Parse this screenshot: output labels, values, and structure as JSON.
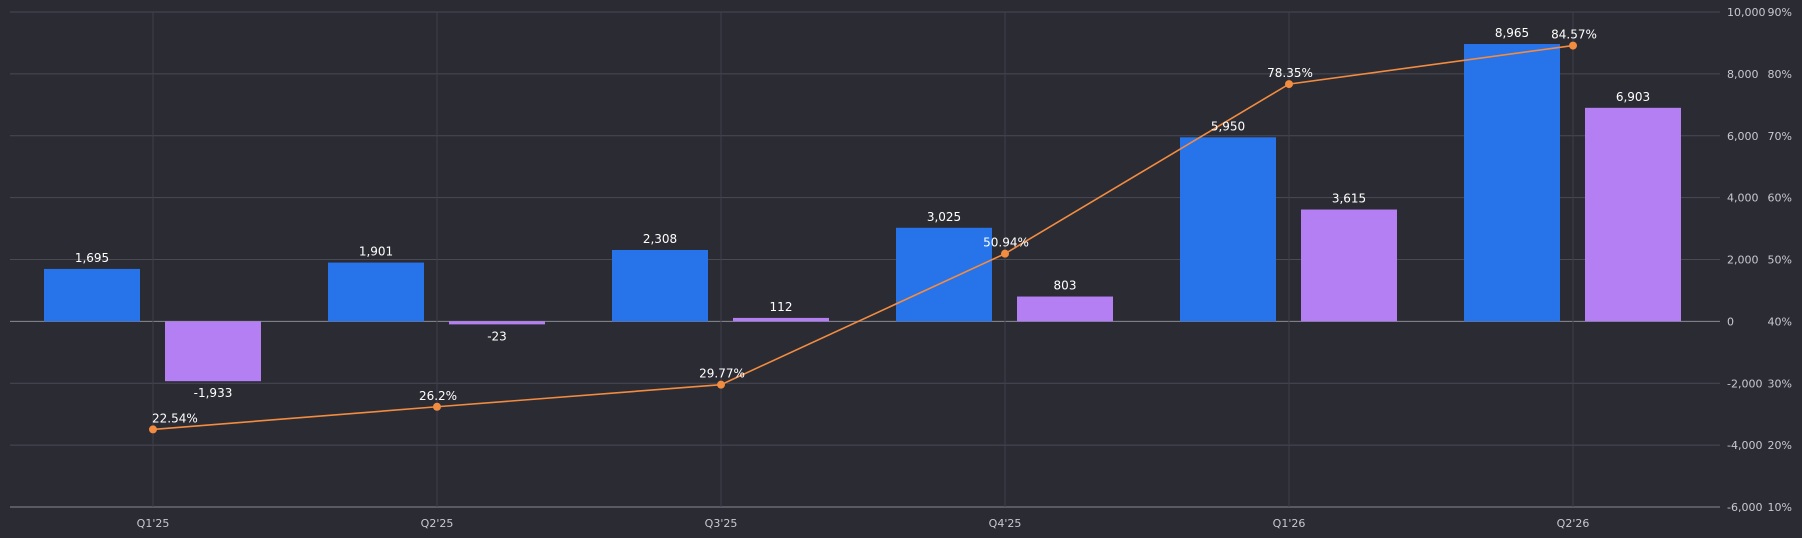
{
  "chart_data": {
    "type": "bar",
    "categories": [
      "Q1'25",
      "Q2'25",
      "Q3'25",
      "Q4'25",
      "Q1'26",
      "Q2'26"
    ],
    "series": [
      {
        "values": [
          1695,
          1901,
          2308,
          3025,
          5950,
          8965
        ],
        "labels": [
          "1,695",
          "1,901",
          "2,308",
          "3,025",
          "5,950",
          "8,965"
        ],
        "color": "#2673ea"
      },
      {
        "values": [
          -1933,
          -23,
          112,
          803,
          3615,
          6903
        ],
        "labels": [
          "-1,933",
          "-23",
          "112",
          "803",
          "3,615",
          "6,903"
        ],
        "color": "#b47ff2"
      }
    ],
    "line_series": {
      "values": [
        22.54,
        26.2,
        29.77,
        50.94,
        78.35,
        84.57
      ],
      "labels": [
        "22.54%",
        "26.2%",
        "29.77%",
        "50.94%",
        "78.35%",
        "84.57%"
      ],
      "color": "#f28c40",
      "axis": "right-secondary"
    },
    "y_left": {
      "range": [
        -6000,
        10000
      ],
      "ticks": [
        10000,
        8000,
        6000,
        4000,
        2000,
        0,
        -2000,
        -4000,
        -6000
      ],
      "tick_labels": [
        "10,000",
        "8,000",
        "6,000",
        "4,000",
        "2,000",
        "0",
        "-2,000",
        "-4,000",
        "-6,000"
      ]
    },
    "y_right": {
      "range": [
        10,
        90
      ],
      "ticks": [
        90,
        80,
        70,
        60,
        50,
        40,
        30,
        20,
        10
      ],
      "tick_labels": [
        "90%",
        "80%",
        "70%",
        "60%",
        "50%",
        "40%",
        "30%",
        "20%",
        "10%"
      ]
    },
    "grid": true,
    "title": "",
    "xlabel": "",
    "ylabel": ""
  }
}
